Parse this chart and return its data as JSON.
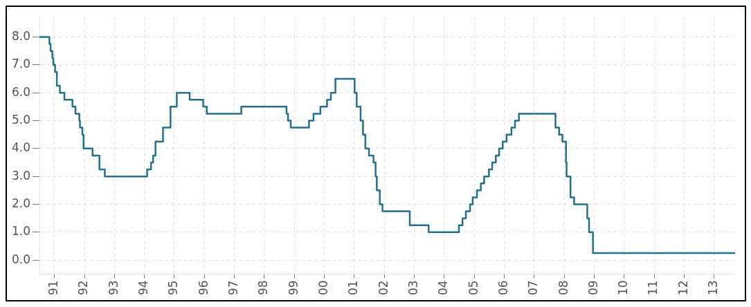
{
  "chart_data": {
    "type": "step",
    "x": [
      1990.5,
      1990.83,
      1990.87,
      1990.93,
      1990.96,
      1991.02,
      1991.08,
      1991.18,
      1991.33,
      1991.6,
      1991.7,
      1991.83,
      1991.85,
      1991.93,
      1991.97,
      1992.27,
      1992.5,
      1992.68,
      1994.09,
      1994.22,
      1994.29,
      1994.37,
      1994.62,
      1994.87,
      1995.08,
      1995.51,
      1995.96,
      1996.08,
      1997.23,
      1998.74,
      1998.79,
      1998.88,
      1999.49,
      1999.64,
      1999.87,
      2000.09,
      2000.22,
      2000.37,
      2001.01,
      2001.08,
      2001.21,
      2001.29,
      2001.37,
      2001.49,
      2001.64,
      2001.71,
      2001.75,
      2001.85,
      2001.94,
      2002.85,
      2003.48,
      2004.49,
      2004.61,
      2004.72,
      2004.86,
      2004.95,
      2005.09,
      2005.22,
      2005.33,
      2005.49,
      2005.6,
      2005.72,
      2005.83,
      2005.95,
      2006.08,
      2006.24,
      2006.36,
      2006.49,
      2007.71,
      2007.83,
      2007.94,
      2008.06,
      2008.08,
      2008.21,
      2008.33,
      2008.77,
      2008.83,
      2008.96,
      2013.7
    ],
    "values": [
      8.0,
      7.75,
      7.5,
      7.25,
      7.0,
      6.75,
      6.25,
      6.0,
      5.75,
      5.5,
      5.25,
      5.0,
      4.75,
      4.5,
      4.0,
      3.75,
      3.25,
      3.0,
      3.25,
      3.5,
      3.75,
      4.25,
      4.75,
      5.5,
      6.0,
      5.75,
      5.5,
      5.25,
      5.5,
      5.25,
      5.0,
      4.75,
      5.0,
      5.25,
      5.5,
      5.75,
      6.0,
      6.5,
      6.0,
      5.5,
      5.0,
      4.5,
      4.0,
      3.75,
      3.5,
      3.0,
      2.5,
      2.0,
      1.75,
      1.25,
      1.0,
      1.25,
      1.5,
      1.75,
      2.0,
      2.25,
      2.5,
      2.75,
      3.0,
      3.25,
      3.5,
      3.75,
      4.0,
      4.25,
      4.5,
      4.75,
      5.0,
      5.25,
      4.75,
      4.5,
      4.25,
      3.5,
      3.0,
      2.25,
      2.0,
      1.5,
      1.0,
      0.25,
      0.25
    ],
    "color": "#22708c",
    "xlim": [
      1990.5,
      2013.7
    ],
    "xticks": [
      {
        "value": 1991,
        "label": "91"
      },
      {
        "value": 1992,
        "label": "92"
      },
      {
        "value": 1993,
        "label": "93"
      },
      {
        "value": 1994,
        "label": "94"
      },
      {
        "value": 1995,
        "label": "95"
      },
      {
        "value": 1996,
        "label": "96"
      },
      {
        "value": 1997,
        "label": "97"
      },
      {
        "value": 1998,
        "label": "98"
      },
      {
        "value": 1999,
        "label": "99"
      },
      {
        "value": 2000,
        "label": "00"
      },
      {
        "value": 2001,
        "label": "01"
      },
      {
        "value": 2002,
        "label": "02"
      },
      {
        "value": 2003,
        "label": "03"
      },
      {
        "value": 2004,
        "label": "04"
      },
      {
        "value": 2005,
        "label": "05"
      },
      {
        "value": 2006,
        "label": "06"
      },
      {
        "value": 2007,
        "label": "07"
      },
      {
        "value": 2008,
        "label": "08"
      },
      {
        "value": 2009,
        "label": "09"
      },
      {
        "value": 2010,
        "label": "10"
      },
      {
        "value": 2011,
        "label": "11"
      },
      {
        "value": 2012,
        "label": "12"
      },
      {
        "value": 2013,
        "label": "13"
      }
    ],
    "ylim": [
      -0.5,
      8.75
    ],
    "yticks": [
      {
        "value": 0,
        "label": "0.0"
      },
      {
        "value": 1,
        "label": "1.0"
      },
      {
        "value": 2,
        "label": "2.0"
      },
      {
        "value": 3,
        "label": "3.0"
      },
      {
        "value": 4,
        "label": "4.0"
      },
      {
        "value": 5,
        "label": "5.0"
      },
      {
        "value": 6,
        "label": "6.0"
      },
      {
        "value": 7,
        "label": "7.0"
      },
      {
        "value": 8,
        "label": "8.0"
      }
    ],
    "grid": true
  }
}
